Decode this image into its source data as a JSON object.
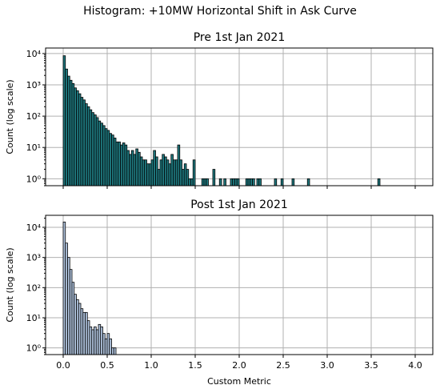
{
  "figure": {
    "suptitle": "Histogram: +10MW Horizontal Shift in Ask Curve"
  },
  "chart_data": [
    {
      "type": "bar",
      "title": "Pre 1st Jan 2021",
      "xlabel": "",
      "ylabel": "Count (log scale)",
      "yscale": "log",
      "xlim": [
        -0.2,
        4.2
      ],
      "ylim": [
        0.6,
        15000
      ],
      "bin_width": 0.025,
      "xticks": [
        0.0,
        0.5,
        1.0,
        1.5,
        2.0,
        2.5,
        3.0,
        3.5,
        4.0
      ],
      "xtick_labels": [
        "0.0",
        "0.5",
        "1.0",
        "1.5",
        "2.0",
        "2.5",
        "3.0",
        "3.5",
        "4.0"
      ],
      "xtick_labels_visible": false,
      "yticks": [
        1,
        10,
        100,
        1000,
        10000
      ],
      "ytick_labels": [
        "10⁰",
        "10¹",
        "10²",
        "10³",
        "10⁴"
      ],
      "grid": true,
      "bar_color": "#1f7a80",
      "bins_left": [
        0.0,
        0.025,
        0.05,
        0.075,
        0.1,
        0.125,
        0.15,
        0.175,
        0.2,
        0.225,
        0.25,
        0.275,
        0.3,
        0.325,
        0.35,
        0.375,
        0.4,
        0.425,
        0.45,
        0.475,
        0.5,
        0.525,
        0.55,
        0.575,
        0.6,
        0.625,
        0.65,
        0.675,
        0.7,
        0.725,
        0.75,
        0.775,
        0.8,
        0.825,
        0.85,
        0.875,
        0.9,
        0.925,
        0.95,
        0.975,
        1.0,
        1.025,
        1.05,
        1.075,
        1.1,
        1.125,
        1.15,
        1.175,
        1.2,
        1.225,
        1.25,
        1.275,
        1.3,
        1.325,
        1.35,
        1.375,
        1.4,
        1.425,
        1.45,
        1.475,
        1.575,
        1.6,
        1.625,
        1.7,
        1.775,
        1.825,
        1.9,
        1.925,
        1.95,
        1.975,
        2.075,
        2.1,
        2.125,
        2.15,
        2.2,
        2.225,
        2.4,
        2.475,
        2.6,
        2.775,
        3.575
      ],
      "values": [
        8500,
        3200,
        1900,
        1400,
        1100,
        800,
        650,
        520,
        400,
        330,
        250,
        200,
        160,
        130,
        110,
        90,
        70,
        60,
        50,
        40,
        35,
        28,
        25,
        20,
        15,
        15,
        12,
        14,
        12,
        8,
        6,
        8,
        6,
        9,
        7,
        5,
        4,
        4,
        3,
        3,
        4,
        8,
        5,
        2,
        4,
        6,
        5,
        4,
        3,
        6,
        4,
        4,
        12,
        4,
        2,
        3,
        2,
        1,
        1,
        4,
        1,
        1,
        1,
        2,
        1,
        1,
        1,
        1,
        1,
        1,
        1,
        1,
        1,
        1,
        1,
        1,
        1,
        1,
        1,
        1,
        1
      ]
    },
    {
      "type": "bar",
      "title": "Post 1st Jan 2021",
      "xlabel": "Custom Metric",
      "ylabel": "Count (log scale)",
      "yscale": "log",
      "xlim": [
        -0.2,
        4.2
      ],
      "ylim": [
        0.6,
        25000
      ],
      "bin_width": 0.025,
      "xticks": [
        0.0,
        0.5,
        1.0,
        1.5,
        2.0,
        2.5,
        3.0,
        3.5,
        4.0
      ],
      "xtick_labels": [
        "0.0",
        "0.5",
        "1.0",
        "1.5",
        "2.0",
        "2.5",
        "3.0",
        "3.5",
        "4.0"
      ],
      "xtick_labels_visible": true,
      "yticks": [
        1,
        10,
        100,
        1000,
        10000
      ],
      "ytick_labels": [
        "10⁰",
        "10¹",
        "10²",
        "10³",
        "10⁴"
      ],
      "grid": true,
      "bar_color": "#b0c4de",
      "bins_left": [
        0.0,
        0.025,
        0.05,
        0.075,
        0.1,
        0.125,
        0.15,
        0.175,
        0.2,
        0.225,
        0.25,
        0.275,
        0.3,
        0.325,
        0.35,
        0.375,
        0.4,
        0.425,
        0.45,
        0.475,
        0.5,
        0.525,
        0.55,
        0.575
      ],
      "values": [
        15000,
        3000,
        1000,
        400,
        150,
        60,
        40,
        30,
        20,
        15,
        15,
        8,
        5,
        4,
        5,
        4,
        6,
        5,
        3,
        2,
        3,
        2,
        1,
        1
      ]
    }
  ]
}
